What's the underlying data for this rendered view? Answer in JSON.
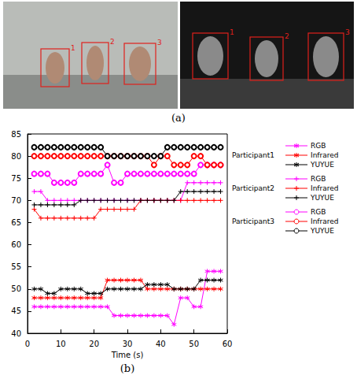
{
  "photos": {
    "caption": "(a)",
    "rgb_box_labels": [
      "1",
      "2",
      "3"
    ],
    "infrared_box_labels": [
      "1",
      "2",
      "3"
    ]
  },
  "chart_data": {
    "type": "line",
    "caption": "(b)",
    "xlabel": "Time (s)",
    "x": [
      2,
      4,
      6,
      8,
      10,
      12,
      14,
      16,
      18,
      20,
      22,
      24,
      26,
      28,
      30,
      32,
      34,
      36,
      38,
      40,
      42,
      44,
      46,
      48,
      50,
      52,
      54,
      56,
      58
    ],
    "xlim": [
      0,
      60
    ],
    "xticks": [
      0,
      10,
      20,
      30,
      40,
      50,
      60
    ],
    "ylim": [
      40,
      85
    ],
    "yticks": [
      40,
      45,
      50,
      55,
      60,
      65,
      70,
      75,
      80,
      85
    ],
    "grid": false,
    "legend": "right",
    "series": [
      {
        "name": "RGB",
        "group": "Participant1",
        "color": "#ff00ff",
        "marker": "star",
        "values": [
          46,
          46,
          46,
          46,
          46,
          46,
          46,
          46,
          46,
          46,
          46,
          46,
          44,
          44,
          44,
          44,
          44,
          44,
          44,
          44,
          44,
          42,
          48,
          48,
          46,
          46,
          54,
          54,
          54
        ]
      },
      {
        "name": "Infrared",
        "group": "Participant1",
        "color": "#ff0000",
        "marker": "star",
        "values": [
          48,
          48,
          48,
          48,
          48,
          48,
          48,
          48,
          48,
          48,
          48,
          52,
          52,
          52,
          52,
          52,
          52,
          50,
          50,
          50,
          50,
          50,
          50,
          50,
          50,
          50,
          50,
          50,
          50
        ]
      },
      {
        "name": "YUYUE",
        "group": "Participant1",
        "color": "#000000",
        "marker": "star",
        "values": [
          50,
          50,
          49,
          49,
          50,
          50,
          50,
          50,
          49,
          49,
          49,
          50,
          50,
          50,
          50,
          50,
          50,
          51,
          51,
          51,
          51,
          50,
          50,
          50,
          50,
          52,
          52,
          52,
          52
        ]
      },
      {
        "name": "RGB",
        "group": "Participant2",
        "color": "#ff00ff",
        "marker": "plus",
        "values": [
          72,
          72,
          70,
          70,
          70,
          70,
          70,
          70,
          70,
          70,
          70,
          70,
          70,
          70,
          70,
          70,
          70,
          70,
          70,
          70,
          70,
          70,
          70,
          74,
          74,
          74,
          74,
          74,
          74
        ]
      },
      {
        "name": "Infrared",
        "group": "Participant2",
        "color": "#ff0000",
        "marker": "plus",
        "values": [
          68,
          66,
          66,
          66,
          66,
          66,
          66,
          66,
          66,
          66,
          68,
          68,
          68,
          68,
          68,
          68,
          70,
          70,
          70,
          70,
          70,
          70,
          70,
          70,
          70,
          70,
          70,
          70,
          70
        ]
      },
      {
        "name": "YUYUE",
        "group": "Participant2",
        "color": "#000000",
        "marker": "plus",
        "values": [
          69,
          69,
          69,
          69,
          69,
          69,
          69,
          70,
          70,
          70,
          70,
          70,
          70,
          70,
          70,
          70,
          70,
          70,
          70,
          70,
          70,
          70,
          72,
          72,
          72,
          72,
          72,
          72,
          72
        ]
      },
      {
        "name": "RGB",
        "group": "Participant3",
        "color": "#ff00ff",
        "marker": "circle",
        "values": [
          76,
          76,
          76,
          74,
          74,
          74,
          74,
          76,
          76,
          76,
          76,
          78,
          74,
          74,
          76,
          76,
          76,
          76,
          76,
          76,
          76,
          76,
          76,
          76,
          76,
          78,
          78,
          78,
          78
        ]
      },
      {
        "name": "Infrared",
        "group": "Participant3",
        "color": "#ff0000",
        "marker": "circle",
        "values": [
          80,
          80,
          80,
          80,
          80,
          80,
          80,
          80,
          80,
          80,
          80,
          80,
          80,
          80,
          80,
          80,
          80,
          80,
          78,
          80,
          80,
          78,
          78,
          78,
          80,
          80,
          78,
          78,
          78
        ]
      },
      {
        "name": "YUYUE",
        "group": "Participant3",
        "color": "#000000",
        "marker": "circle",
        "values": [
          82,
          82,
          82,
          82,
          82,
          82,
          82,
          82,
          82,
          82,
          82,
          80,
          80,
          80,
          80,
          80,
          80,
          80,
          80,
          80,
          82,
          82,
          82,
          82,
          82,
          82,
          82,
          82,
          82
        ]
      }
    ]
  }
}
